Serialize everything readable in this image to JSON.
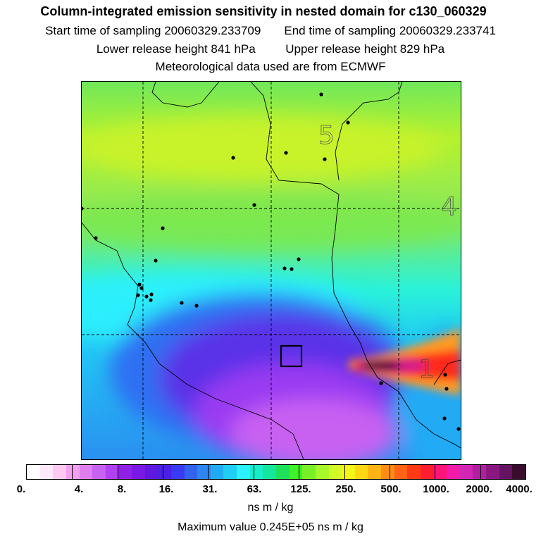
{
  "title": "Column-integrated emission sensitivity in nested domain for c130_060329",
  "sampling": {
    "start_label": "Start time of sampling 20060329.233709",
    "end_label": "End time of sampling 20060329.233741"
  },
  "release": {
    "lower_label": "Lower release height  841 hPa",
    "upper_label": "Upper release height  829 hPa"
  },
  "met_label": "Meteorological data used are from ECMWF",
  "map": {
    "time_labels": [
      "5",
      "4",
      "1"
    ],
    "colors": {
      "background": "#8ce85a",
      "cyan_band": "#2cf0ff",
      "blue_zone": "#2e6ff2",
      "purple_zone": "#7a35f2",
      "magenta_zone": "#c14af5",
      "plume_red": "#ff2a1e",
      "plume_core": "#3a0b2c",
      "plume_orange": "#ff9a20"
    }
  },
  "colorbar": {
    "colors": [
      "#ffffff",
      "#ffe8fa",
      "#ffc8f2",
      "#f2a0f0",
      "#e07ef0",
      "#c860f2",
      "#b040f2",
      "#9020e6",
      "#7a18e6",
      "#6018e0",
      "#4a20e6",
      "#3a3af2",
      "#3262ee",
      "#2e86f2",
      "#22aaf5",
      "#1ecef5",
      "#2af2ff",
      "#18eecc",
      "#14e69c",
      "#1ee05a",
      "#40f028",
      "#78f028",
      "#a6f82a",
      "#d2fa26",
      "#f5f518",
      "#ffd814",
      "#ffb414",
      "#ff8c14",
      "#ff6414",
      "#ff3a14",
      "#ff1e30",
      "#ff1478",
      "#f21aa8",
      "#d226b4",
      "#b020a0",
      "#8a1880",
      "#641460",
      "#3a0b2c"
    ],
    "tick_labels": [
      "0.",
      "4.",
      "8.",
      "16.",
      "31.",
      "63.",
      "125.",
      "250.",
      "500.",
      "1000.",
      "2000.",
      "4000."
    ],
    "units": "ns m / kg"
  },
  "max_value_label": "Maximum value  0.245E+05 ns m / kg"
}
